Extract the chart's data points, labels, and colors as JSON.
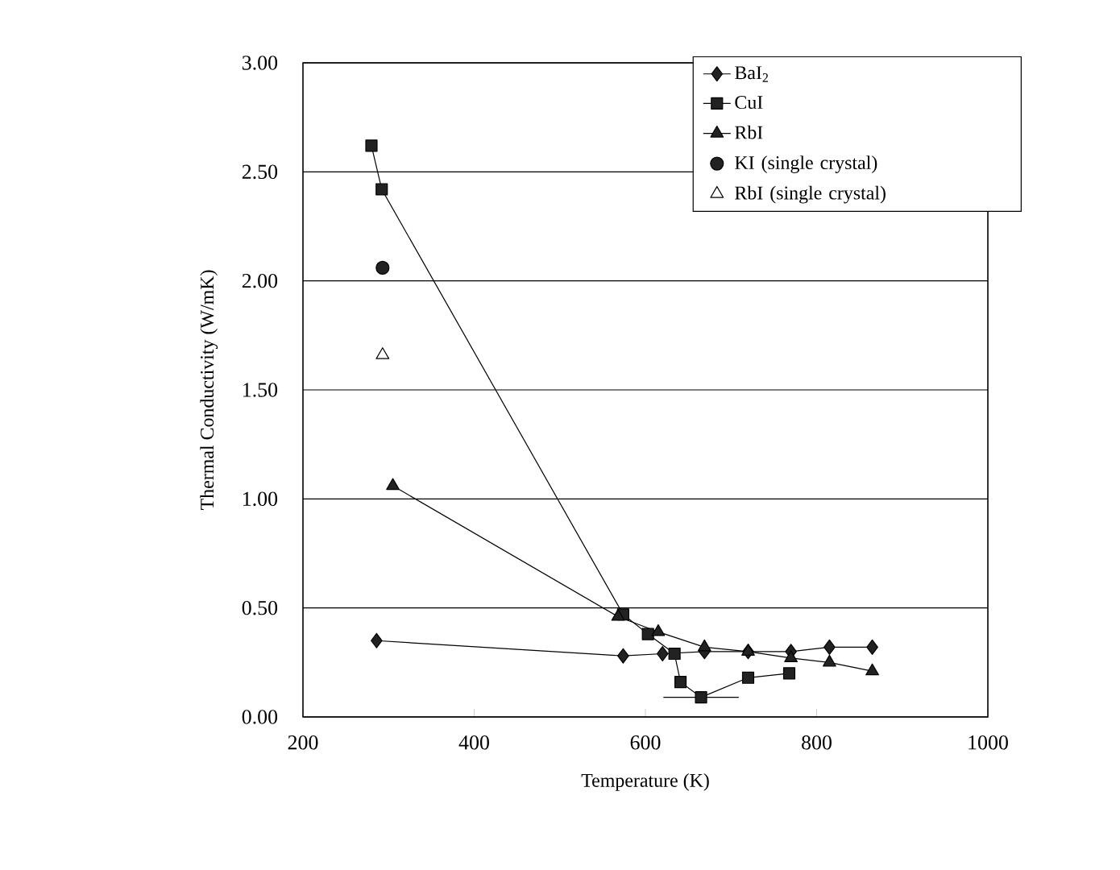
{
  "chart_data": {
    "type": "line",
    "xlabel": "Temperature (K)",
    "ylabel": "Thermal Conductivity (W/mK)",
    "xlim": [
      200,
      1000
    ],
    "xticks": [
      200,
      400,
      600,
      800,
      1000
    ],
    "ylim": [
      0,
      3
    ],
    "yticks": [
      {
        "value": 0,
        "label": "0.00"
      },
      {
        "value": 0.5,
        "label": "0.50"
      },
      {
        "value": 1,
        "label": "1.00"
      },
      {
        "value": 1.5,
        "label": "1.50"
      },
      {
        "value": 2,
        "label": "2.00"
      },
      {
        "value": 2.5,
        "label": "2.50"
      },
      {
        "value": 3,
        "label": "3.00"
      }
    ],
    "grid": "y",
    "legend": "top right",
    "series": [
      {
        "name": "BaI$_{2}$",
        "color": "#222222",
        "marker": "diamond",
        "x": [
          286,
          574,
          620,
          669,
          720,
          770,
          815,
          865
        ],
        "values": [
          0.35,
          0.28,
          0.29,
          0.3,
          0.3,
          0.3,
          0.32,
          0.32
        ]
      },
      {
        "name": "CuI",
        "color": "#222222",
        "marker": "square",
        "x": [
          280,
          292,
          574,
          603,
          634,
          641,
          665,
          720,
          768
        ],
        "values": [
          2.62,
          2.42,
          0.47,
          0.38,
          0.29,
          0.16,
          0.09,
          0.18,
          0.2
        ],
        "xerrors": [
          null,
          null,
          null,
          null,
          null,
          null,
          44,
          null,
          null
        ]
      },
      {
        "name": "RbI",
        "color": "#222222",
        "marker": "triangle",
        "x": [
          305,
          568,
          615,
          669,
          720,
          770,
          815,
          865
        ],
        "values": [
          1.06,
          0.46,
          0.39,
          0.32,
          0.3,
          0.27,
          0.25,
          0.21
        ]
      },
      {
        "name": "KI (single crystal)",
        "type": "scatter",
        "color": "#222222",
        "marker": "circle",
        "x": [
          293
        ],
        "values": [
          2.06
        ]
      },
      {
        "name": "RbI (single crystal)",
        "type": "scatter",
        "color": "#ffffff",
        "marker": "triangle",
        "x": [
          293
        ],
        "values": [
          1.66
        ]
      }
    ]
  }
}
